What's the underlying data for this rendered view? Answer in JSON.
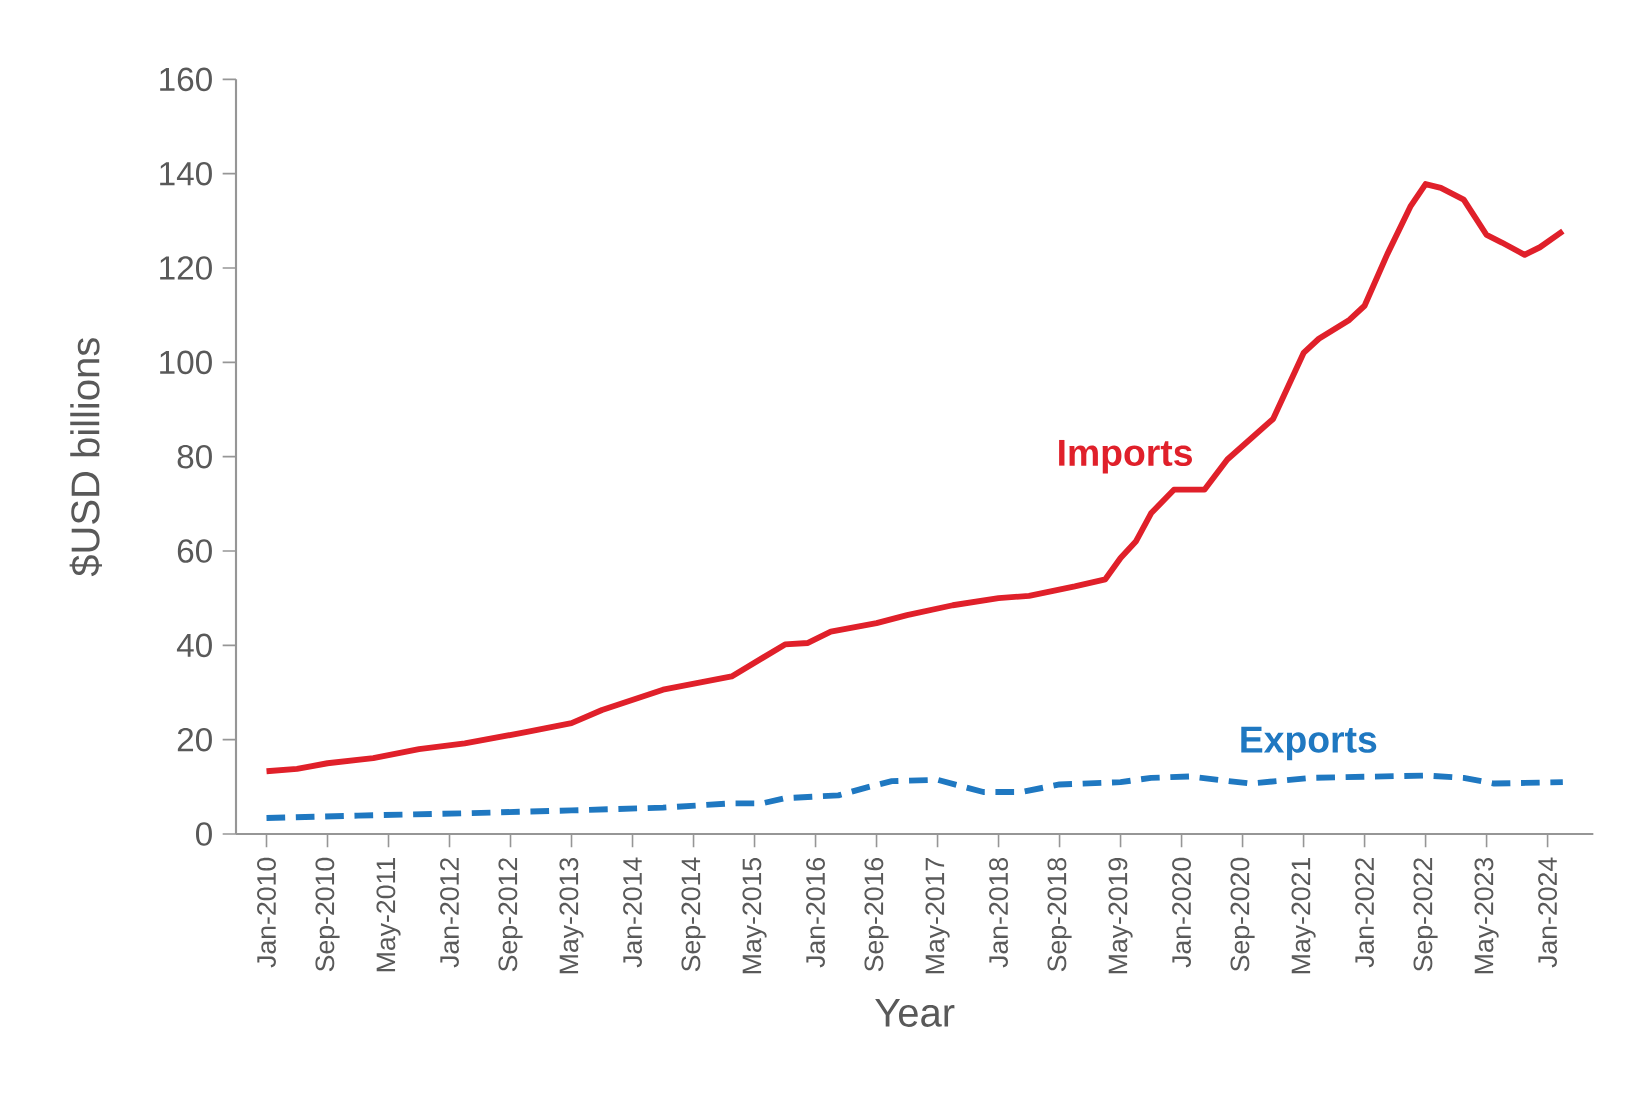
{
  "chart_data": {
    "type": "line",
    "xlabel": "Year",
    "ylabel": "$USD billions",
    "x": [
      "2010-01",
      "2010-05",
      "2010-09",
      "2011-03",
      "2011-09",
      "2012-03",
      "2012-11",
      "2013-05",
      "2013-09",
      "2014-05",
      "2015-02",
      "2015-09",
      "2015-12",
      "2016-03",
      "2016-09",
      "2017-01",
      "2017-07",
      "2018-01",
      "2018-05",
      "2018-11",
      "2019-03",
      "2019-05",
      "2019-07",
      "2019-09",
      "2019-12",
      "2020-04",
      "2020-07",
      "2021-01",
      "2021-05",
      "2021-07",
      "2021-11",
      "2022-01",
      "2022-04",
      "2022-07",
      "2022-09",
      "2022-11",
      "2023-02",
      "2023-05",
      "2023-07",
      "2023-10",
      "2023-12",
      "2024-03"
    ],
    "series": [
      {
        "name": "Imports",
        "color": "#e0202a",
        "line_style": "solid",
        "values": [
          13.3,
          13.8,
          15.0,
          16.1,
          18.0,
          19.2,
          21.6,
          23.5,
          26.3,
          30.6,
          33.4,
          40.2,
          40.5,
          42.9,
          44.7,
          46.4,
          48.5,
          50.0,
          50.5,
          52.5,
          54.0,
          58.5,
          62.0,
          68.0,
          73.0,
          73.0,
          79.4,
          88.0,
          102.0,
          105.0,
          109.0,
          112.0,
          123.0,
          133.0,
          137.8,
          137.0,
          134.5,
          127.0,
          125.4,
          122.8,
          124.4,
          127.8
        ]
      },
      {
        "name": "Exports",
        "color": "#1f78c1",
        "line_style": "dashed",
        "x": [
          "2010-01",
          "2011-01",
          "2012-03",
          "2013-05",
          "2014-05",
          "2015-02",
          "2015-06",
          "2015-09",
          "2016-04",
          "2016-08",
          "2016-11",
          "2017-05",
          "2017-11",
          "2018-04",
          "2018-09",
          "2019-05",
          "2019-09",
          "2020-02",
          "2020-10",
          "2021-06",
          "2022-09",
          "2023-02",
          "2023-06",
          "2024-03"
        ],
        "values": [
          3.4,
          3.9,
          4.4,
          5.0,
          5.6,
          6.5,
          6.5,
          7.6,
          8.2,
          10.0,
          11.2,
          11.5,
          8.9,
          8.9,
          10.5,
          11.0,
          11.9,
          12.2,
          10.7,
          11.9,
          12.4,
          11.9,
          10.7,
          11.0
        ]
      }
    ],
    "xlim": [
      "2009-09",
      "2024-07"
    ],
    "xticks": [
      {
        "value": "2010-01",
        "label": "Jan-2010"
      },
      {
        "value": "2010-09",
        "label": "Sep-2010"
      },
      {
        "value": "2011-05",
        "label": "May-2011"
      },
      {
        "value": "2012-01",
        "label": "Jan-2012"
      },
      {
        "value": "2012-09",
        "label": "Sep-2012"
      },
      {
        "value": "2013-05",
        "label": "May-2013"
      },
      {
        "value": "2014-01",
        "label": "Jan-2014"
      },
      {
        "value": "2014-09",
        "label": "Sep-2014"
      },
      {
        "value": "2015-05",
        "label": "May-2015"
      },
      {
        "value": "2016-01",
        "label": "Jan-2016"
      },
      {
        "value": "2016-09",
        "label": "Sep-2016"
      },
      {
        "value": "2017-05",
        "label": "May-2017"
      },
      {
        "value": "2018-01",
        "label": "Jan-2018"
      },
      {
        "value": "2018-09",
        "label": "Sep-2018"
      },
      {
        "value": "2019-05",
        "label": "May-2019"
      },
      {
        "value": "2020-01",
        "label": "Jan-2020"
      },
      {
        "value": "2020-09",
        "label": "Sep-2020"
      },
      {
        "value": "2021-05",
        "label": "May-2021"
      },
      {
        "value": "2022-01",
        "label": "Jan-2022"
      },
      {
        "value": "2022-09",
        "label": "Sep-2022"
      },
      {
        "value": "2023-05",
        "label": "May-2023"
      },
      {
        "value": "2024-01",
        "label": "Jan-2024"
      }
    ],
    "ylim": [
      0,
      160
    ],
    "yticks": [
      0,
      20,
      40,
      60,
      80,
      100,
      120,
      140,
      160
    ],
    "grid": false,
    "legend": false
  }
}
